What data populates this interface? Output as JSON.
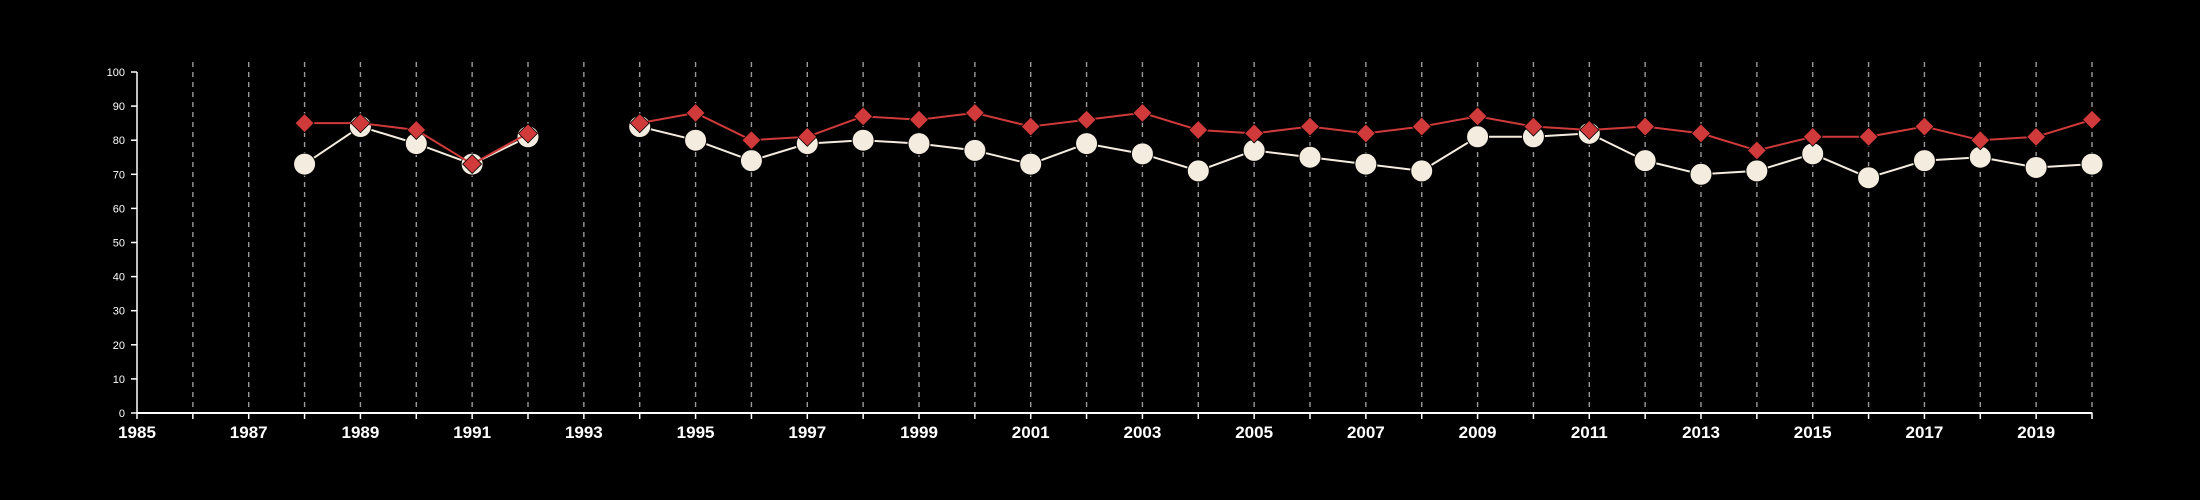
{
  "chart_data": {
    "type": "line",
    "title": "",
    "xlabel": "",
    "ylabel": "",
    "xlim": [
      1985,
      2020
    ],
    "ylim": [
      0,
      100
    ],
    "x_ticks_labeled": [
      "1985",
      "1987",
      "1989",
      "1991",
      "1993",
      "1995",
      "1997",
      "1999",
      "2001",
      "2003",
      "2005",
      "2007",
      "2009",
      "2011",
      "2013",
      "2015",
      "2017",
      "2019"
    ],
    "y_ticks": [
      "0",
      "10",
      "20",
      "30",
      "40",
      "50",
      "60",
      "70",
      "80",
      "90",
      "100"
    ],
    "grid": "vertical dashed every year",
    "series": [
      {
        "marker": "diamond",
        "color": "#d03a3a",
        "points": [
          [
            1988,
            85
          ],
          [
            1989,
            85
          ],
          [
            1990,
            83
          ],
          [
            1991,
            73
          ],
          [
            1992,
            82
          ],
          [
            1994,
            85
          ],
          [
            1995,
            88
          ],
          [
            1996,
            80
          ],
          [
            1997,
            81
          ],
          [
            1998,
            87
          ],
          [
            1999,
            86
          ],
          [
            2000,
            88
          ],
          [
            2001,
            84
          ],
          [
            2002,
            86
          ],
          [
            2003,
            88
          ],
          [
            2004,
            83
          ],
          [
            2005,
            82
          ],
          [
            2006,
            84
          ],
          [
            2007,
            82
          ],
          [
            2008,
            84
          ],
          [
            2009,
            87
          ],
          [
            2010,
            84
          ],
          [
            2011,
            83
          ],
          [
            2012,
            84
          ],
          [
            2013,
            82
          ],
          [
            2014,
            77
          ],
          [
            2015,
            81
          ],
          [
            2016,
            81
          ],
          [
            2017,
            84
          ],
          [
            2018,
            80
          ],
          [
            2019,
            81
          ],
          [
            2020,
            86
          ]
        ]
      },
      {
        "marker": "circle",
        "color": "#f5ece0",
        "points": [
          [
            1988,
            73
          ],
          [
            1989,
            84
          ],
          [
            1990,
            79
          ],
          [
            1991,
            73
          ],
          [
            1992,
            81
          ],
          [
            1994,
            84
          ],
          [
            1995,
            80
          ],
          [
            1996,
            74
          ],
          [
            1997,
            79
          ],
          [
            1998,
            80
          ],
          [
            1999,
            79
          ],
          [
            2000,
            77
          ],
          [
            2001,
            73
          ],
          [
            2002,
            79
          ],
          [
            2003,
            76
          ],
          [
            2004,
            71
          ],
          [
            2005,
            77
          ],
          [
            2006,
            75
          ],
          [
            2007,
            73
          ],
          [
            2008,
            71
          ],
          [
            2009,
            81
          ],
          [
            2010,
            81
          ],
          [
            2011,
            82
          ],
          [
            2012,
            74
          ],
          [
            2013,
            70
          ],
          [
            2014,
            71
          ],
          [
            2015,
            76
          ],
          [
            2016,
            69
          ],
          [
            2017,
            74
          ],
          [
            2018,
            75
          ],
          [
            2019,
            72
          ],
          [
            2020,
            73
          ]
        ]
      }
    ]
  }
}
